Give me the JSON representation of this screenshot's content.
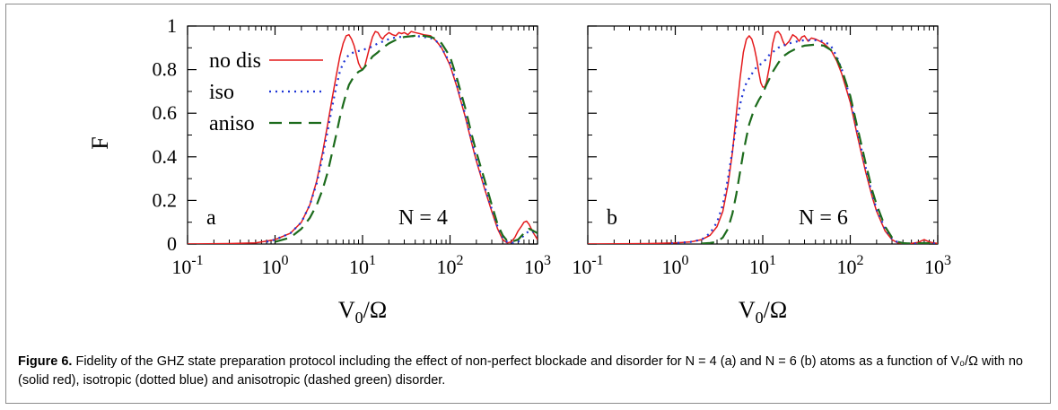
{
  "caption": {
    "label": "Figure 6.",
    "text": "Fidelity of the GHZ state preparation protocol including the effect of non-perfect blockade and disorder for N = 4 (a) and N = 6 (b) atoms as a function of V₀/Ω with no (solid red), isotropic (dotted blue) and anisotropic (dashed green) disorder."
  },
  "colors": {
    "no_dis": "#e41a1c",
    "iso": "#1f35d6",
    "aniso": "#1c6b1c"
  },
  "chart_data": [
    {
      "type": "line",
      "panel_label": "a",
      "annotation": "N = 4",
      "xlabel": "V0/Ω",
      "ylabel": "F",
      "xscale": "log",
      "xlim": [
        0.1,
        1000
      ],
      "ylim": [
        0,
        1
      ],
      "xticks": [
        "10^-1",
        "10^0",
        "10^1",
        "10^2",
        "10^3"
      ],
      "yticks": [
        "0",
        "0.2",
        "0.4",
        "0.6",
        "0.8",
        "1"
      ],
      "legend": {
        "placement": "top-left"
      },
      "series": [
        {
          "name": "no dis",
          "style": "solid",
          "x": [
            0.1,
            0.3,
            0.6,
            1.0,
            1.5,
            2.0,
            2.5,
            3.0,
            3.5,
            4.0,
            4.5,
            5.0,
            5.5,
            6.0,
            6.5,
            7.0,
            7.5,
            8.0,
            8.5,
            9.0,
            9.5,
            10,
            10.5,
            11,
            12,
            13,
            14,
            15,
            16,
            17,
            18,
            20,
            22,
            24,
            26,
            28,
            30,
            33,
            36,
            40,
            45,
            50,
            60,
            70,
            80,
            100,
            120,
            150,
            180,
            200,
            250,
            300,
            350,
            400,
            450,
            500,
            550,
            600,
            650,
            700,
            750,
            800,
            900,
            1000
          ],
          "y": [
            0,
            0.002,
            0.005,
            0.02,
            0.05,
            0.1,
            0.18,
            0.29,
            0.42,
            0.55,
            0.67,
            0.77,
            0.86,
            0.92,
            0.955,
            0.96,
            0.94,
            0.91,
            0.87,
            0.83,
            0.81,
            0.8,
            0.81,
            0.84,
            0.9,
            0.95,
            0.975,
            0.97,
            0.95,
            0.94,
            0.955,
            0.97,
            0.96,
            0.955,
            0.97,
            0.965,
            0.97,
            0.96,
            0.975,
            0.97,
            0.965,
            0.96,
            0.955,
            0.93,
            0.9,
            0.82,
            0.72,
            0.58,
            0.45,
            0.38,
            0.25,
            0.15,
            0.07,
            0.02,
            0.005,
            0.01,
            0.03,
            0.06,
            0.08,
            0.1,
            0.105,
            0.09,
            0.05,
            0.02
          ]
        },
        {
          "name": "iso",
          "style": "dotted",
          "x": [
            0.8,
            1.0,
            1.5,
            2.0,
            2.5,
            3.0,
            3.5,
            4.0,
            4.5,
            5.0,
            5.5,
            6.0,
            7.0,
            8.0,
            10,
            12,
            15,
            20,
            25,
            30,
            40,
            50,
            60,
            70,
            80,
            100,
            120,
            150,
            180,
            200,
            250,
            300,
            350,
            400,
            450,
            500,
            600,
            700,
            800,
            900,
            1000
          ],
          "y": [
            0.01,
            0.02,
            0.05,
            0.1,
            0.18,
            0.28,
            0.4,
            0.52,
            0.63,
            0.72,
            0.79,
            0.83,
            0.87,
            0.88,
            0.89,
            0.9,
            0.92,
            0.94,
            0.95,
            0.95,
            0.955,
            0.95,
            0.945,
            0.93,
            0.9,
            0.83,
            0.73,
            0.59,
            0.46,
            0.39,
            0.26,
            0.16,
            0.08,
            0.03,
            0.01,
            0.005,
            0.01,
            0.04,
            0.06,
            0.055,
            0.04
          ]
        },
        {
          "name": "aniso",
          "style": "dashed",
          "x": [
            1.0,
            1.5,
            2.0,
            2.5,
            3.0,
            3.5,
            4.0,
            4.5,
            5.0,
            5.5,
            6.0,
            6.5,
            7.0,
            8.0,
            9.0,
            10,
            11,
            12,
            13,
            15,
            17,
            20,
            25,
            30,
            40,
            50,
            60,
            70,
            80,
            100,
            120,
            150,
            180,
            200,
            250,
            300,
            350,
            400,
            450,
            500,
            600,
            700,
            800,
            900,
            1000
          ],
          "y": [
            0.01,
            0.03,
            0.07,
            0.12,
            0.18,
            0.25,
            0.33,
            0.42,
            0.5,
            0.58,
            0.64,
            0.69,
            0.73,
            0.77,
            0.79,
            0.8,
            0.82,
            0.84,
            0.86,
            0.88,
            0.9,
            0.92,
            0.94,
            0.95,
            0.955,
            0.955,
            0.95,
            0.94,
            0.92,
            0.86,
            0.76,
            0.62,
            0.49,
            0.42,
            0.29,
            0.18,
            0.09,
            0.04,
            0.015,
            0.01,
            0.02,
            0.05,
            0.07,
            0.06,
            0.05
          ]
        }
      ]
    },
    {
      "type": "line",
      "panel_label": "b",
      "annotation": "N = 6",
      "xlabel": "V0/Ω",
      "xscale": "log",
      "xlim": [
        0.1,
        1000
      ],
      "ylim": [
        0,
        1
      ],
      "xticks": [
        "10^-1",
        "10^0",
        "10^1",
        "10^2",
        "10^3"
      ],
      "series": [
        {
          "name": "no dis",
          "style": "solid",
          "x": [
            0.1,
            0.5,
            1.0,
            1.5,
            2.0,
            2.5,
            3.0,
            3.5,
            4.0,
            4.5,
            5.0,
            5.5,
            6.0,
            6.5,
            7.0,
            7.5,
            8.0,
            8.5,
            9.0,
            9.5,
            10,
            10.5,
            11,
            12,
            13,
            14,
            15,
            16,
            17,
            18,
            20,
            22,
            24,
            26,
            28,
            30,
            33,
            36,
            40,
            45,
            50,
            60,
            70,
            80,
            100,
            120,
            150,
            180,
            200,
            250,
            300,
            350,
            400,
            500,
            600,
            650,
            700,
            750,
            800,
            900,
            1000
          ],
          "y": [
            0,
            0.002,
            0.005,
            0.01,
            0.02,
            0.04,
            0.08,
            0.15,
            0.27,
            0.42,
            0.6,
            0.76,
            0.88,
            0.94,
            0.955,
            0.94,
            0.9,
            0.85,
            0.79,
            0.74,
            0.72,
            0.72,
            0.74,
            0.82,
            0.92,
            0.97,
            0.975,
            0.96,
            0.93,
            0.91,
            0.93,
            0.96,
            0.95,
            0.93,
            0.95,
            0.955,
            0.93,
            0.945,
            0.94,
            0.93,
            0.92,
            0.89,
            0.84,
            0.78,
            0.65,
            0.5,
            0.33,
            0.21,
            0.15,
            0.06,
            0.02,
            0.005,
            0.002,
            0.003,
            0.008,
            0.015,
            0.02,
            0.015,
            0.01,
            0.005,
            0.003
          ]
        },
        {
          "name": "iso",
          "style": "dotted",
          "x": [
            0.9,
            1.0,
            1.5,
            2.0,
            2.5,
            3.0,
            3.5,
            4.0,
            4.5,
            5.0,
            5.5,
            6.0,
            6.5,
            7.0,
            7.5,
            8.0,
            9.0,
            10,
            11,
            12,
            13,
            15,
            17,
            20,
            25,
            30,
            40,
            50,
            60,
            70,
            80,
            100,
            120,
            150,
            180,
            200,
            250,
            300,
            350,
            400,
            500,
            700,
            1000
          ],
          "y": [
            0.002,
            0.004,
            0.01,
            0.02,
            0.05,
            0.1,
            0.18,
            0.3,
            0.43,
            0.55,
            0.64,
            0.7,
            0.74,
            0.76,
            0.78,
            0.8,
            0.82,
            0.83,
            0.85,
            0.87,
            0.88,
            0.9,
            0.91,
            0.92,
            0.93,
            0.935,
            0.935,
            0.93,
            0.91,
            0.86,
            0.8,
            0.67,
            0.52,
            0.35,
            0.22,
            0.16,
            0.07,
            0.025,
            0.008,
            0.003,
            0.002,
            0.003,
            0.002
          ]
        },
        {
          "name": "aniso",
          "style": "dashed",
          "x": [
            2.0,
            2.5,
            3.0,
            3.5,
            4.0,
            4.5,
            5.0,
            5.5,
            6.0,
            6.5,
            7.0,
            8.0,
            9.0,
            10,
            11,
            12,
            13,
            15,
            17,
            20,
            25,
            30,
            40,
            50,
            60,
            70,
            80,
            100,
            120,
            150,
            180,
            200,
            250,
            300,
            350,
            400,
            500,
            700,
            1000
          ],
          "y": [
            0.002,
            0.005,
            0.01,
            0.03,
            0.07,
            0.14,
            0.23,
            0.33,
            0.42,
            0.49,
            0.55,
            0.62,
            0.66,
            0.69,
            0.73,
            0.76,
            0.79,
            0.83,
            0.86,
            0.88,
            0.9,
            0.91,
            0.915,
            0.91,
            0.89,
            0.85,
            0.8,
            0.68,
            0.54,
            0.37,
            0.24,
            0.18,
            0.08,
            0.03,
            0.01,
            0.004,
            0.002,
            0.004,
            0.003
          ]
        }
      ]
    }
  ]
}
